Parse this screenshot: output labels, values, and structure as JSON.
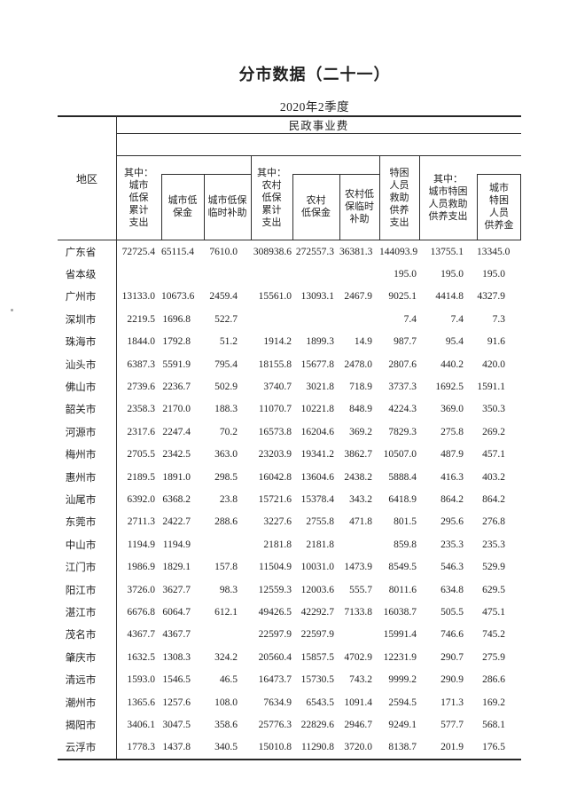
{
  "page": {
    "title": "分市数据（二十一）",
    "subtitle": "2020年2季度"
  },
  "table": {
    "group_header": "民政事业费",
    "region_header": "地区",
    "columns": [
      "其中：\n城市\n低保\n累计\n支出",
      "城市低\n保金",
      "城市低保\n临时补助",
      "其中：\n农村\n低保\n累计\n支出",
      "农村\n低保金",
      "农村低\n保临时\n补助",
      "特困\n人员\n救助\n供养\n支出",
      "其中：\n城市特困\n人员救助\n供养支出",
      "城市\n特困\n人员\n供养金"
    ],
    "rows": [
      {
        "region": "广东省",
        "values": [
          "72725.4",
          "65115.4",
          "7610.0",
          "308938.6",
          "272557.3",
          "36381.3",
          "144093.9",
          "13755.1",
          "13345.0"
        ]
      },
      {
        "region": "省本级",
        "values": [
          "",
          "",
          "",
          "",
          "",
          "",
          "195.0",
          "195.0",
          "195.0"
        ]
      },
      {
        "region": "广州市",
        "values": [
          "13133.0",
          "10673.6",
          "2459.4",
          "15561.0",
          "13093.1",
          "2467.9",
          "9025.1",
          "4414.8",
          "4327.9"
        ]
      },
      {
        "region": "深圳市",
        "values": [
          "2219.5",
          "1696.8",
          "522.7",
          "",
          "",
          "",
          "7.4",
          "7.4",
          "7.3"
        ]
      },
      {
        "region": "珠海市",
        "values": [
          "1844.0",
          "1792.8",
          "51.2",
          "1914.2",
          "1899.3",
          "14.9",
          "987.7",
          "95.4",
          "91.6"
        ]
      },
      {
        "region": "汕头市",
        "values": [
          "6387.3",
          "5591.9",
          "795.4",
          "18155.8",
          "15677.8",
          "2478.0",
          "2807.6",
          "440.2",
          "420.0"
        ]
      },
      {
        "region": "佛山市",
        "values": [
          "2739.6",
          "2236.7",
          "502.9",
          "3740.7",
          "3021.8",
          "718.9",
          "3737.3",
          "1692.5",
          "1591.1"
        ]
      },
      {
        "region": "韶关市",
        "values": [
          "2358.3",
          "2170.0",
          "188.3",
          "11070.7",
          "10221.8",
          "848.9",
          "4224.3",
          "369.0",
          "350.3"
        ]
      },
      {
        "region": "河源市",
        "values": [
          "2317.6",
          "2247.4",
          "70.2",
          "16573.8",
          "16204.6",
          "369.2",
          "7829.3",
          "275.8",
          "269.2"
        ]
      },
      {
        "region": "梅州市",
        "values": [
          "2705.5",
          "2342.5",
          "363.0",
          "23203.9",
          "19341.2",
          "3862.7",
          "10507.0",
          "487.9",
          "457.1"
        ]
      },
      {
        "region": "惠州市",
        "values": [
          "2189.5",
          "1891.0",
          "298.5",
          "16042.8",
          "13604.6",
          "2438.2",
          "5888.4",
          "416.3",
          "403.2"
        ]
      },
      {
        "region": "汕尾市",
        "values": [
          "6392.0",
          "6368.2",
          "23.8",
          "15721.6",
          "15378.4",
          "343.2",
          "6418.9",
          "864.2",
          "864.2"
        ]
      },
      {
        "region": "东莞市",
        "values": [
          "2711.3",
          "2422.7",
          "288.6",
          "3227.6",
          "2755.8",
          "471.8",
          "801.5",
          "295.6",
          "276.8"
        ]
      },
      {
        "region": "中山市",
        "values": [
          "1194.9",
          "1194.9",
          "",
          "2181.8",
          "2181.8",
          "",
          "859.8",
          "235.3",
          "235.3"
        ]
      },
      {
        "region": "江门市",
        "values": [
          "1986.9",
          "1829.1",
          "157.8",
          "11504.9",
          "10031.0",
          "1473.9",
          "8549.5",
          "546.3",
          "529.9"
        ]
      },
      {
        "region": "阳江市",
        "values": [
          "3726.0",
          "3627.7",
          "98.3",
          "12559.3",
          "12003.6",
          "555.7",
          "8011.6",
          "634.8",
          "629.5"
        ]
      },
      {
        "region": "湛江市",
        "values": [
          "6676.8",
          "6064.7",
          "612.1",
          "49426.5",
          "42292.7",
          "7133.8",
          "16038.7",
          "505.5",
          "475.1"
        ]
      },
      {
        "region": "茂名市",
        "values": [
          "4367.7",
          "4367.7",
          "",
          "22597.9",
          "22597.9",
          "",
          "15991.4",
          "746.6",
          "745.2"
        ]
      },
      {
        "region": "肇庆市",
        "values": [
          "1632.5",
          "1308.3",
          "324.2",
          "20560.4",
          "15857.5",
          "4702.9",
          "12231.9",
          "290.7",
          "275.9"
        ]
      },
      {
        "region": "清远市",
        "values": [
          "1593.0",
          "1546.5",
          "46.5",
          "16473.7",
          "15730.5",
          "743.2",
          "9999.2",
          "290.9",
          "286.6"
        ]
      },
      {
        "region": "潮州市",
        "values": [
          "1365.6",
          "1257.6",
          "108.0",
          "7634.9",
          "6543.5",
          "1091.4",
          "2594.5",
          "171.3",
          "169.2"
        ]
      },
      {
        "region": "揭阳市",
        "values": [
          "3406.1",
          "3047.5",
          "358.6",
          "25776.3",
          "22829.6",
          "2946.7",
          "9249.1",
          "577.7",
          "568.1"
        ]
      },
      {
        "region": "云浮市",
        "values": [
          "1778.3",
          "1437.8",
          "340.5",
          "15010.8",
          "11290.8",
          "3720.0",
          "8138.7",
          "201.9",
          "176.5"
        ]
      }
    ]
  }
}
